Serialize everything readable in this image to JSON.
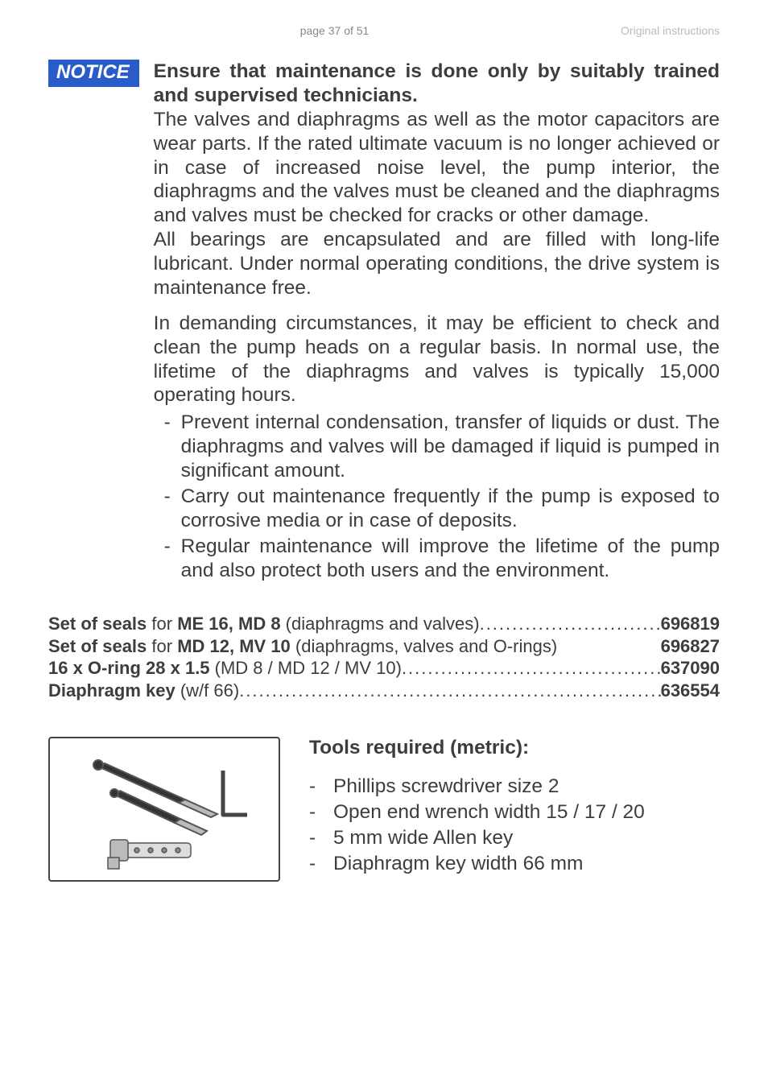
{
  "header": {
    "page_label": "page 37 of 51",
    "doc_label": "Original instructions"
  },
  "notice_label": "NOTICE",
  "body": {
    "heading": "Ensure that maintenance is done only by suitably trained and supervised technicians.",
    "p1": "The valves and diaphragms as well as the motor capacitors are wear parts. If the rated ultimate vacuum is no longer achieved or in case of increased noise level, the pump interior, the diaphragms and the valves must be cleaned and the diaphragms and valves must be checked for cracks or other damage.",
    "p2": "All bearings are encapsulated and are filled with long-life lubricant. Under normal operating conditions, the drive system is maintenance free.",
    "p3": "In demanding circumstances, it may be efficient to check and clean the pump heads on a regular basis. In normal use, the lifetime of the diaphragms and valves is typically 15,000 operating hours.",
    "bullets": [
      "Prevent internal condensation, transfer of liquids or dust. The diaphragms and valves will be damaged if liquid is pumped in significant amount.",
      "Carry out maintenance frequently if the pump is exposed to corrosive media or in case of deposits.",
      "Regular maintenance will improve the lifetime of the pump and also protect both users and the environment."
    ]
  },
  "parts": [
    {
      "label_prefix": "Set of seals",
      "label_mid": " for ",
      "label_bold2": "ME 16, MD 8",
      "label_suffix": " (diaphragms and valves) ",
      "number": "696819",
      "dotted": true
    },
    {
      "label_prefix": "Set of seals",
      "label_mid": " for ",
      "label_bold2": "MD 12, MV 10",
      "label_suffix": " (diaphragms, valves and O-rings)",
      "number": "696827",
      "dotted": false
    },
    {
      "label_prefix": "16 x O-ring 28 x 1.5",
      "label_mid": "",
      "label_bold2": "",
      "label_suffix": " (MD 8 / MD 12 / MV 10) ",
      "number": "637090",
      "dotted": true
    },
    {
      "label_prefix": "Diaphragm key",
      "label_mid": "",
      "label_bold2": "",
      "label_suffix": " (w/f 66) ",
      "number": "636554",
      "dotted": true
    }
  ],
  "tools": {
    "title": "Tools required (metric):",
    "items": [
      "Phillips screwdriver size 2",
      "Open end wrench width 15 / 17 / 20",
      "5 mm wide Allen key",
      "Diaphragm key width 66 mm"
    ]
  },
  "colors": {
    "notice_bg": "#2a5cc9",
    "text": "#3d3d3d",
    "header_gray": "#888888",
    "header_light": "#bbbbbb"
  }
}
